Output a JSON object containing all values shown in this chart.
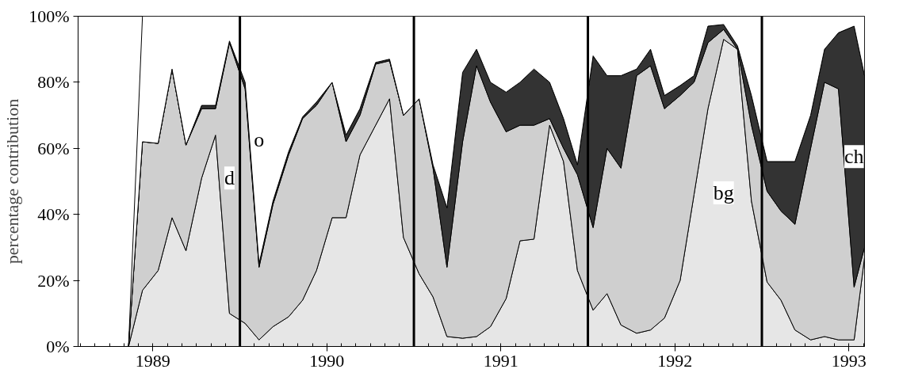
{
  "chart_data": {
    "type": "area",
    "stacked": true,
    "ylabel": "percentage contribution",
    "x": [
      1988.86,
      1988.94,
      1989.03,
      1989.11,
      1989.19,
      1989.28,
      1989.36,
      1989.44,
      1989.53,
      1989.61,
      1989.69,
      1989.78,
      1989.86,
      1989.94,
      1990.03,
      1990.11,
      1990.19,
      1990.28,
      1990.36,
      1990.44,
      1990.53,
      1990.61,
      1990.69,
      1990.78,
      1990.86,
      1990.94,
      1991.03,
      1991.11,
      1991.19,
      1991.28,
      1991.36,
      1991.44,
      1991.53,
      1991.61,
      1991.69,
      1991.78,
      1991.86,
      1991.94,
      1992.03,
      1992.11,
      1992.19,
      1992.28,
      1992.36,
      1992.44,
      1992.53,
      1992.61,
      1992.69,
      1992.78,
      1992.86,
      1992.94,
      1993.03,
      1993.09
    ],
    "series": [
      {
        "name": "bg",
        "color": "#e6e6e6",
        "values": [
          0,
          17,
          23,
          39,
          29,
          51,
          64,
          10,
          7,
          2,
          6,
          9,
          14,
          23,
          39,
          39,
          58,
          67,
          75,
          33,
          22,
          15,
          3,
          2.5,
          3,
          6,
          14.5,
          32,
          32.5,
          67,
          56,
          23,
          11,
          16,
          6.5,
          4,
          5,
          8.6,
          20,
          46,
          72,
          93,
          90,
          44,
          19.5,
          14,
          5,
          2,
          3,
          2,
          2,
          27
        ]
      },
      {
        "name": "d",
        "color": "#cfcfcf",
        "values": [
          0,
          45,
          38.5,
          45,
          32,
          21,
          8,
          82,
          71,
          22,
          37,
          49,
          55,
          50,
          41,
          23,
          12,
          18.5,
          11.5,
          37,
          53,
          39,
          21,
          59.5,
          82,
          68,
          50.5,
          35,
          34.5,
          2,
          4,
          29,
          25,
          44,
          47.5,
          78,
          80,
          63.4,
          56,
          34,
          20,
          3,
          0,
          23,
          27.5,
          27,
          32,
          58,
          77,
          76,
          16,
          3
        ]
      },
      {
        "name": "ch",
        "color": "#333333",
        "values": [
          0,
          0,
          0,
          0,
          0,
          1,
          1,
          0.5,
          2,
          1,
          1,
          1,
          0.5,
          1,
          0,
          2,
          2,
          0.5,
          0.5,
          0,
          0,
          1,
          18,
          21,
          5,
          6,
          12,
          13,
          17,
          11,
          9,
          3,
          52,
          22,
          28,
          2,
          5,
          4,
          3,
          2,
          5,
          1.5,
          1,
          9,
          9,
          15,
          19,
          10,
          10,
          17,
          79,
          52
        ]
      },
      {
        "name": "o",
        "color": "#ffffff",
        "values": [
          0,
          38,
          38.5,
          16,
          39,
          27,
          27,
          7.5,
          20,
          75,
          56,
          41,
          30.5,
          26,
          20,
          36,
          28,
          14,
          13,
          30,
          25,
          45,
          58,
          17,
          10,
          20,
          23,
          20,
          16,
          20,
          31,
          45,
          12,
          18,
          18,
          16,
          10,
          24,
          21,
          18,
          3,
          2.5,
          9,
          24,
          44,
          44,
          44,
          30,
          10,
          5,
          3,
          18
        ]
      }
    ],
    "xlim": [
      1988.57,
      1993.09
    ],
    "xticks": [
      1989,
      1990,
      1991,
      1992,
      1993
    ],
    "ylim": [
      0,
      100
    ],
    "yticks": [
      {
        "value": 0,
        "label": "0%"
      },
      {
        "value": 20,
        "label": "20%"
      },
      {
        "value": 40,
        "label": "40%"
      },
      {
        "value": 60,
        "label": "60%"
      },
      {
        "value": 80,
        "label": "80%"
      },
      {
        "value": 100,
        "label": "100%"
      }
    ],
    "ref_lines": [
      {
        "axis": "x",
        "value": 1989.5,
        "label": null,
        "color": "#000000"
      },
      {
        "axis": "x",
        "value": 1990.5,
        "label": null,
        "color": "#000000"
      },
      {
        "axis": "x",
        "value": 1991.5,
        "label": null,
        "color": "#000000"
      },
      {
        "axis": "x",
        "value": 1992.5,
        "label": null,
        "color": "#000000"
      }
    ],
    "grid": false
  }
}
